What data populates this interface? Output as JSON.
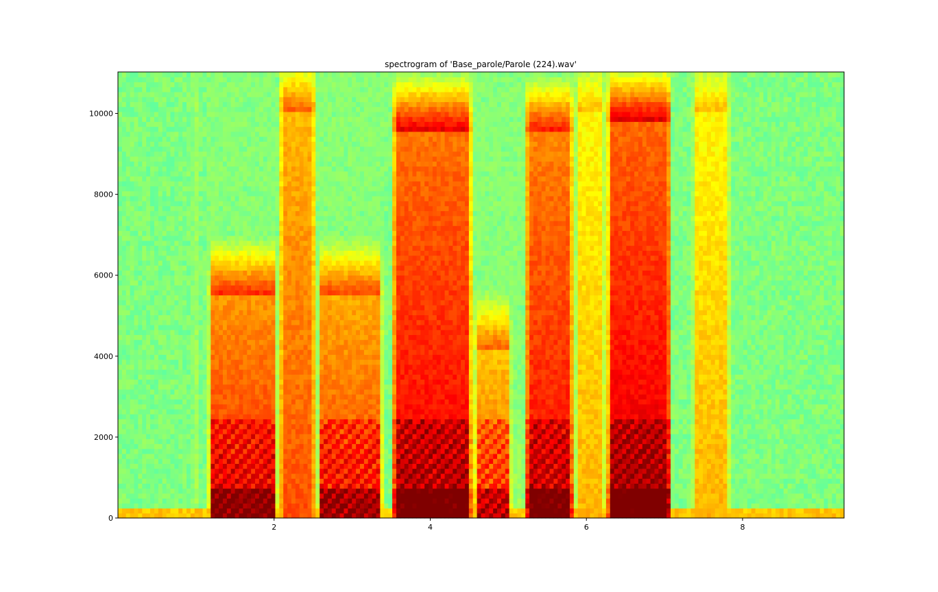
{
  "chart_data": {
    "type": "heatmap",
    "title": "spectrogram of 'Base_parole/Parole (224).wav'",
    "xlabel": "",
    "ylabel": "",
    "xlim": [
      0.0,
      9.3
    ],
    "ylim": [
      0,
      11025
    ],
    "x_ticks": [
      2,
      4,
      6,
      8
    ],
    "y_ticks": [
      0,
      2000,
      4000,
      6000,
      8000,
      10000
    ],
    "colormap": "jet",
    "grid": false,
    "background_level_color": "#5ff6a0",
    "speech_segments": [
      {
        "start": 0.95,
        "end": 1.05,
        "peak_hz": 10000,
        "intensity": 0.55,
        "voiced": false
      },
      {
        "start": 1.15,
        "end": 2.05,
        "peak_hz": 5500,
        "intensity": 0.85,
        "voiced": true
      },
      {
        "start": 2.05,
        "end": 2.55,
        "peak_hz": 10000,
        "intensity": 0.8,
        "voiced": false
      },
      {
        "start": 2.55,
        "end": 3.4,
        "peak_hz": 5500,
        "intensity": 0.82,
        "voiced": true
      },
      {
        "start": 3.5,
        "end": 4.55,
        "peak_hz": 9600,
        "intensity": 0.9,
        "voiced": true
      },
      {
        "start": 4.55,
        "end": 5.05,
        "peak_hz": 4200,
        "intensity": 0.78,
        "voiced": true
      },
      {
        "start": 5.05,
        "end": 5.2,
        "peak_hz": 1000,
        "intensity": 0.55,
        "voiced": false
      },
      {
        "start": 5.2,
        "end": 5.85,
        "peak_hz": 9500,
        "intensity": 0.88,
        "voiced": true
      },
      {
        "start": 5.85,
        "end": 6.25,
        "peak_hz": 10000,
        "intensity": 0.7,
        "voiced": false
      },
      {
        "start": 6.25,
        "end": 7.1,
        "peak_hz": 9800,
        "intensity": 0.92,
        "voiced": true
      },
      {
        "start": 7.35,
        "end": 7.85,
        "peak_hz": 10000,
        "intensity": 0.7,
        "voiced": false
      }
    ]
  }
}
